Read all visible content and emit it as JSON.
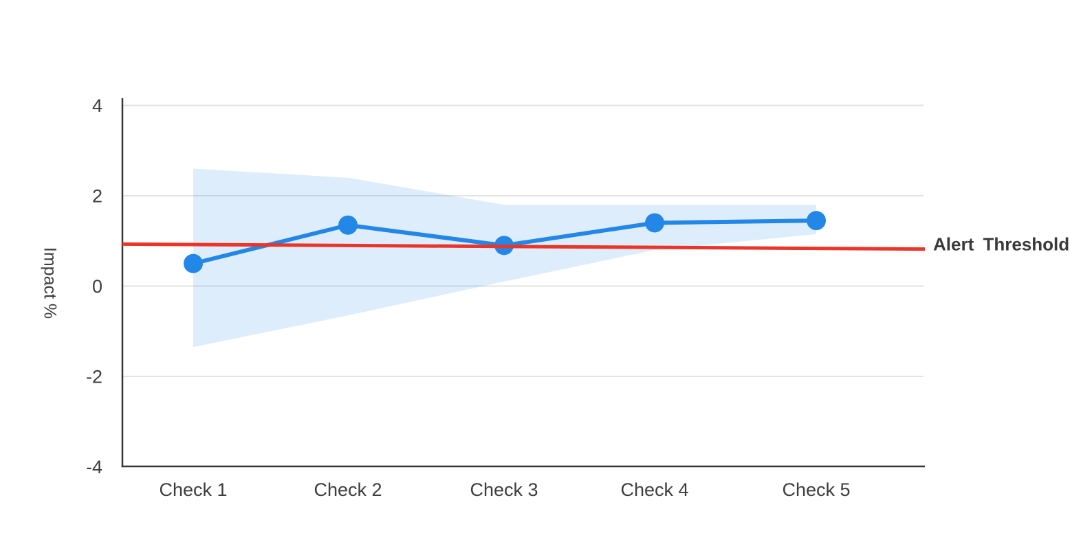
{
  "chart_data": {
    "type": "line",
    "title": "",
    "categories": [
      "Check 1",
      "Check 2",
      "Check 3",
      "Check 4",
      "Check 5"
    ],
    "series": [
      {
        "name": "impact",
        "values": [
          0.5,
          1.35,
          0.9,
          1.4,
          1.45
        ],
        "color": "#2287e6",
        "marker": "circle"
      }
    ],
    "band": {
      "name": "confidence-band",
      "upper": [
        2.6,
        2.4,
        1.8,
        1.8,
        1.8
      ],
      "lower": [
        -1.35,
        -0.65,
        0.1,
        0.8,
        1.15
      ],
      "color": "#2287e6",
      "opacity": 0.15
    },
    "threshold": {
      "label": "Alert Threshold",
      "start_value": 0.93,
      "end_value": 0.82,
      "color": "#ea352b"
    },
    "xlabel": "",
    "ylabel": "Impact %",
    "yticks": [
      4,
      2,
      0,
      -2,
      -4
    ],
    "ylim": [
      -4,
      4
    ],
    "grid": true,
    "legend": "none",
    "colors": {
      "line": "#2287e6",
      "band_fill": "#ddeafb",
      "threshold": "#ea352b",
      "gridline": "#e3e3e3",
      "axis": "#373737",
      "tick_text": "#3d3d3d",
      "background": "#ffffff"
    }
  }
}
